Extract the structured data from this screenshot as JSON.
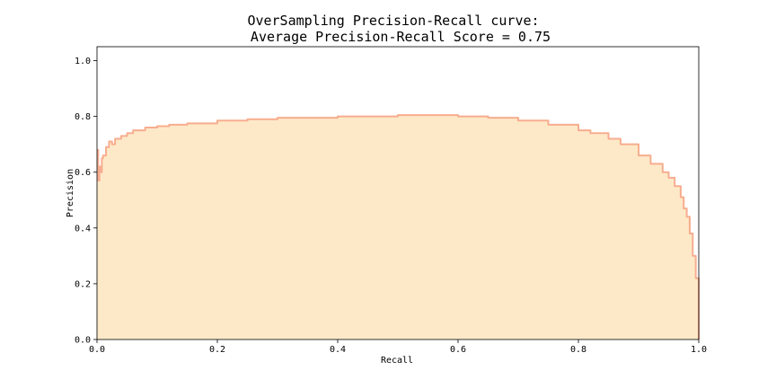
{
  "chart_data": {
    "type": "area",
    "title": "OverSampling Precision-Recall curve:",
    "subtitle": "Average Precision-Recall Score = 0.75",
    "xlabel": "Recall",
    "ylabel": "Precision",
    "xlim": [
      0.0,
      1.0
    ],
    "ylim": [
      0.0,
      1.05
    ],
    "xticks": [
      "0.0",
      "0.2",
      "0.4",
      "0.6",
      "0.8",
      "1.0"
    ],
    "yticks": [
      "0.0",
      "0.2",
      "0.4",
      "0.6",
      "0.8",
      "1.0"
    ],
    "grid": false,
    "legend": null,
    "series": [
      {
        "style": "step-post",
        "x": [
          0.0,
          0.002,
          0.004,
          0.006,
          0.008,
          0.01,
          0.015,
          0.02,
          0.025,
          0.03,
          0.04,
          0.05,
          0.06,
          0.07,
          0.08,
          0.1,
          0.12,
          0.15,
          0.2,
          0.25,
          0.3,
          0.35,
          0.4,
          0.45,
          0.5,
          0.55,
          0.6,
          0.65,
          0.7,
          0.75,
          0.8,
          0.82,
          0.85,
          0.87,
          0.9,
          0.92,
          0.94,
          0.95,
          0.96,
          0.97,
          0.975,
          0.98,
          0.985,
          0.99,
          0.995,
          1.0
        ],
        "y": [
          0.68,
          0.57,
          0.62,
          0.6,
          0.65,
          0.66,
          0.69,
          0.71,
          0.7,
          0.72,
          0.73,
          0.74,
          0.75,
          0.75,
          0.76,
          0.765,
          0.77,
          0.775,
          0.785,
          0.79,
          0.795,
          0.795,
          0.8,
          0.8,
          0.805,
          0.805,
          0.8,
          0.795,
          0.785,
          0.77,
          0.75,
          0.74,
          0.72,
          0.7,
          0.66,
          0.63,
          0.6,
          0.58,
          0.55,
          0.51,
          0.47,
          0.44,
          0.38,
          0.3,
          0.22,
          0.1
        ]
      }
    ],
    "colors": {
      "line": "#f7ad8f",
      "fill": "#fde9c8",
      "axis": "#000000"
    }
  }
}
